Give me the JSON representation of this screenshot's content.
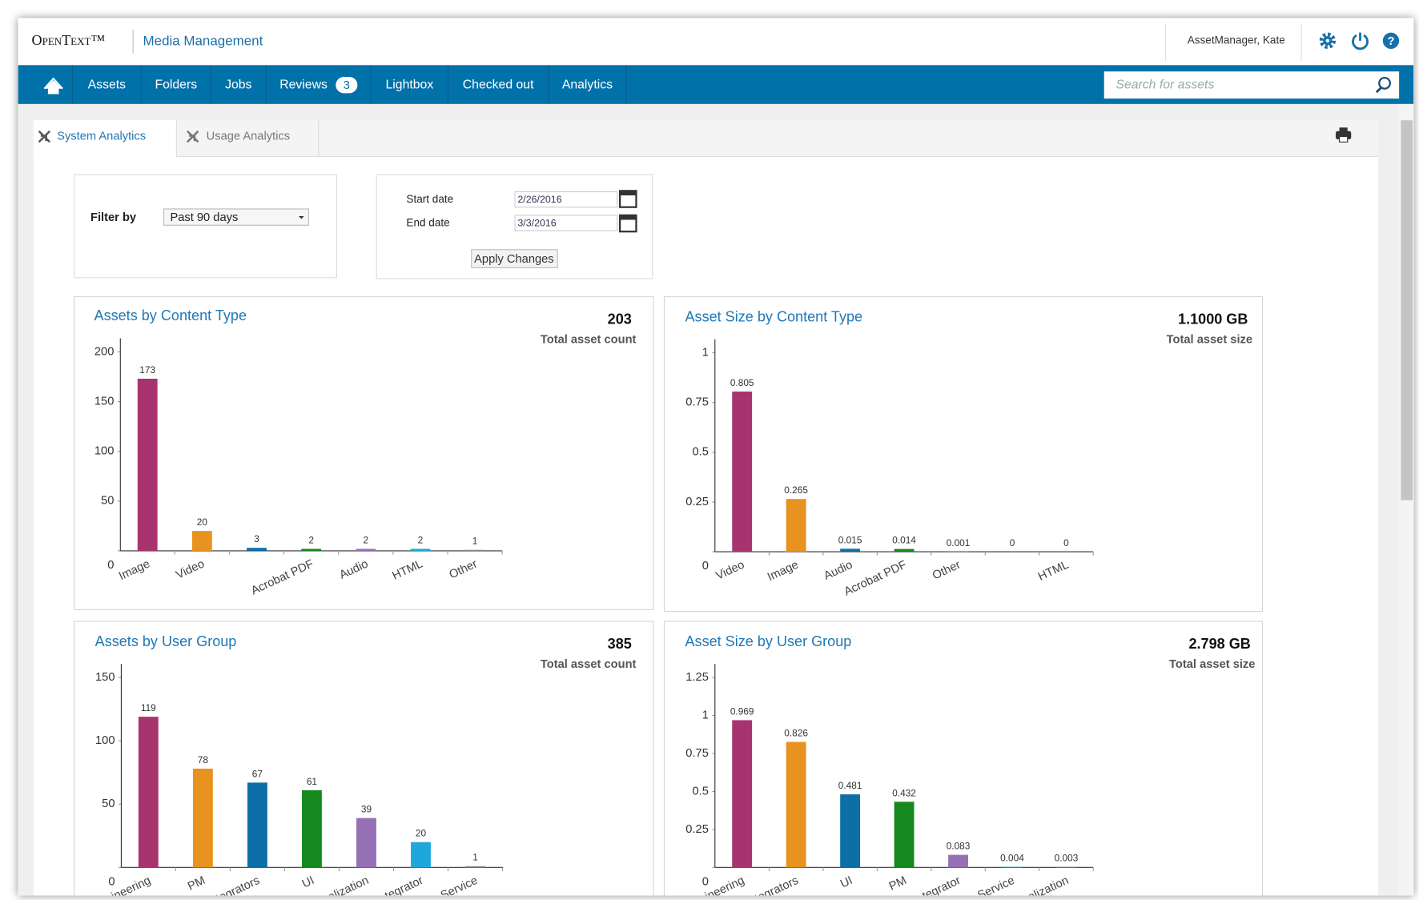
{
  "header": {
    "logo": "OpenText™",
    "product": "Media Management",
    "user": "AssetManager, Kate"
  },
  "nav": {
    "items": [
      "Assets",
      "Folders",
      "Jobs",
      "Reviews",
      "Lightbox",
      "Checked out",
      "Analytics"
    ],
    "reviews_badge": 3,
    "search_placeholder": "Search for assets"
  },
  "tabs": [
    "System Analytics",
    "Usage Analytics"
  ],
  "filters": {
    "filter_label": "Filter by",
    "filter_value": "Past 90 days",
    "start_label": "Start date",
    "start_value": "2/26/2016",
    "end_label": "End date",
    "end_value": "3/3/2016",
    "apply": "Apply Changes"
  },
  "chart_data": [
    {
      "type": "bar",
      "title": "Assets by Content Type",
      "total": "203",
      "total_label": "Total asset count",
      "categories": [
        "Image",
        "Video",
        null,
        "Acrobat PDF",
        "Audio",
        "HTML",
        "Other"
      ],
      "values": [
        173,
        20,
        3,
        2,
        2,
        2,
        1
      ],
      "colors": [
        "#a8346f",
        "#e8921f",
        "#0d6fa5",
        "#15891e",
        "#9670b5",
        "#1fa7dc",
        "#8a8a8a"
      ],
      "ylim": [
        0,
        200
      ],
      "yticks": [
        0,
        50,
        100,
        150,
        200
      ]
    },
    {
      "type": "bar",
      "title": "Asset Size by Content Type",
      "total": "1.1000 GB",
      "total_label": "Total asset size",
      "categories": [
        "Video",
        "Image",
        "Audio",
        "Acrobat PDF",
        "Other",
        null,
        "HTML"
      ],
      "values": [
        0.805,
        0.265,
        0.015,
        0.014,
        0.001,
        0,
        0
      ],
      "colors": [
        "#a8346f",
        "#e8921f",
        "#0d6fa5",
        "#15891e",
        "#9670b5",
        "#1fa7dc",
        "#8a8a8a"
      ],
      "ylim": [
        0,
        1
      ],
      "yticks": [
        0,
        0.25,
        0.5,
        0.75,
        1
      ]
    },
    {
      "type": "bar",
      "title": "Assets by User Group",
      "total": "385",
      "total_label": "Total asset count",
      "categories": [
        "ineering",
        "PM",
        "tegrators",
        "UI",
        "alization",
        "tegrator",
        "Service"
      ],
      "values": [
        119,
        78,
        67,
        61,
        39,
        20,
        1
      ],
      "colors": [
        "#a8346f",
        "#e8921f",
        "#0d6fa5",
        "#15891e",
        "#9670b5",
        "#1fa7dc",
        "#8a8a8a"
      ],
      "ylim": [
        0,
        150
      ],
      "yticks": [
        0,
        50,
        100,
        150
      ]
    },
    {
      "type": "bar",
      "title": "Asset Size by User Group",
      "total": "2.798 GB",
      "total_label": "Total asset size",
      "categories": [
        "ineering",
        "tegrators",
        "UI",
        "PM",
        "tegrator",
        "Service",
        "alization"
      ],
      "values": [
        0.969,
        0.826,
        0.481,
        0.432,
        0.083,
        0.004,
        0.003
      ],
      "colors": [
        "#a8346f",
        "#e8921f",
        "#0d6fa5",
        "#15891e",
        "#9670b5",
        "#1fa7dc",
        "#8a8a8a"
      ],
      "ylim": [
        0,
        1.25
      ],
      "yticks": [
        0,
        0.25,
        0.5,
        0.75,
        1,
        1.25
      ]
    }
  ]
}
